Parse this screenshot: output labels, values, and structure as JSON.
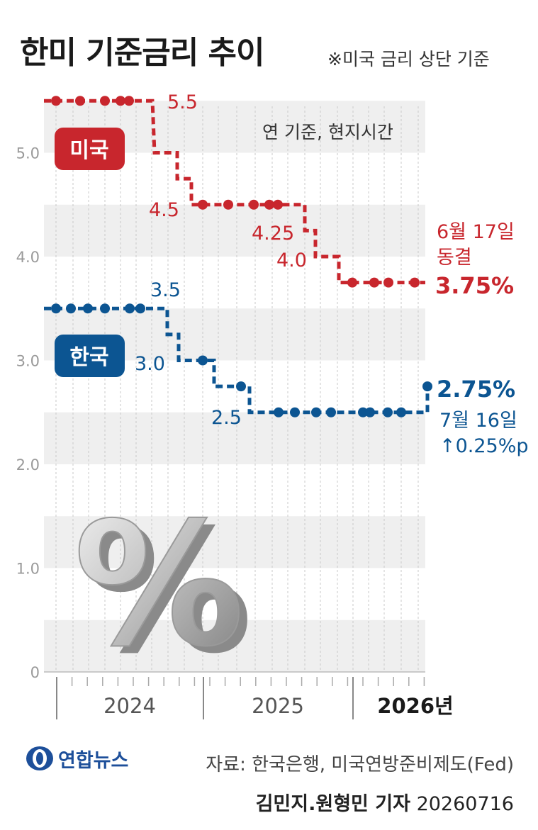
{
  "header": {
    "title": "한미 기준금리 추이",
    "note": "※미국 금리 상단 기준"
  },
  "chart_data": {
    "type": "line",
    "step": true,
    "note": "연 기준, 현지시간",
    "ylim": [
      0,
      5.5
    ],
    "yticks": [
      "0",
      "1.0",
      "2.0",
      "3.0",
      "4.0",
      "5.0"
    ],
    "x_year_labels": [
      "2024",
      "2025",
      "2026년"
    ],
    "series": [
      {
        "name": "미국",
        "color": "#c8262d",
        "values": [
          5.5,
          5.5,
          5.5,
          5.5,
          5.5,
          5.0,
          4.75,
          4.5,
          4.5,
          4.5,
          4.5,
          4.5,
          4.5,
          4.25,
          4.0,
          3.75,
          3.75,
          3.75,
          3.75,
          3.75
        ],
        "labels": [
          "5.5",
          "4.5",
          "4.25",
          "4.0"
        ],
        "end_label": "3.75%",
        "end_note": [
          "6월 17일",
          "동결"
        ]
      },
      {
        "name": "한국",
        "color": "#0c5592",
        "values": [
          3.5,
          3.5,
          3.5,
          3.5,
          3.5,
          3.5,
          3.25,
          3.0,
          3.0,
          2.75,
          2.75,
          2.5,
          2.5,
          2.5,
          2.5,
          2.5,
          2.5,
          2.5,
          2.5,
          2.5,
          2.75
        ],
        "labels": [
          "3.5",
          "3.0",
          "2.5"
        ],
        "end_label": "2.75%",
        "end_note": [
          "7월 16일",
          "↑0.25%p"
        ]
      }
    ]
  },
  "logo": {
    "text": "연합뉴스"
  },
  "footer": {
    "source": "자료: 한국은행, 미국연방준비제도(Fed)",
    "reporters": "김민지.원형민 기자",
    "date": "20260716"
  }
}
